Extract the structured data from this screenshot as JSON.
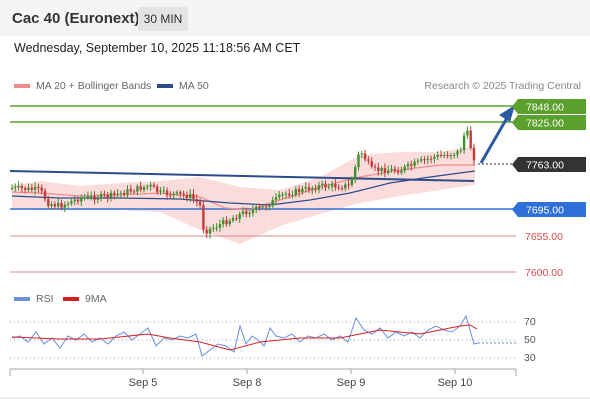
{
  "header": {
    "instrument": "Cac 40 (Euronext)",
    "timeframe": "30 MIN"
  },
  "datetime": "Wednesday, September 10, 2025 11:18:56 AM CET",
  "legend": {
    "ma20_label": "MA 20 + Bollinger Bands",
    "ma50_label": "MA 50",
    "credit": "Research © 2025 Trading Central",
    "rsi_label": "RSI",
    "rsi_ma_label": "9MA"
  },
  "colors": {
    "ma20": "#f28c8c",
    "ma50": "#2b4d8a",
    "resistance": "#5aa02c",
    "support": "#2f6fd8",
    "last": "#333333",
    "minor": "#d94a4a",
    "bollinger": "#f8d0d0",
    "bull": "#3f8f2f",
    "bear": "#c23b3b",
    "rsi": "#6a8ee0",
    "rsi_ma": "#d62020"
  },
  "price_levels": [
    {
      "value": "7848.00",
      "type": "resistance"
    },
    {
      "value": "7825.00",
      "type": "resistance"
    },
    {
      "value": "7763.00",
      "type": "last"
    },
    {
      "value": "7695.00",
      "type": "support"
    },
    {
      "value": "7655.00",
      "type": "minor"
    },
    {
      "value": "7600.00",
      "type": "minor"
    }
  ],
  "x_axis": [
    "Sep 5",
    "Sep 8",
    "Sep 9",
    "Sep 10"
  ],
  "rsi_axis": [
    "70",
    "50",
    "30"
  ]
}
